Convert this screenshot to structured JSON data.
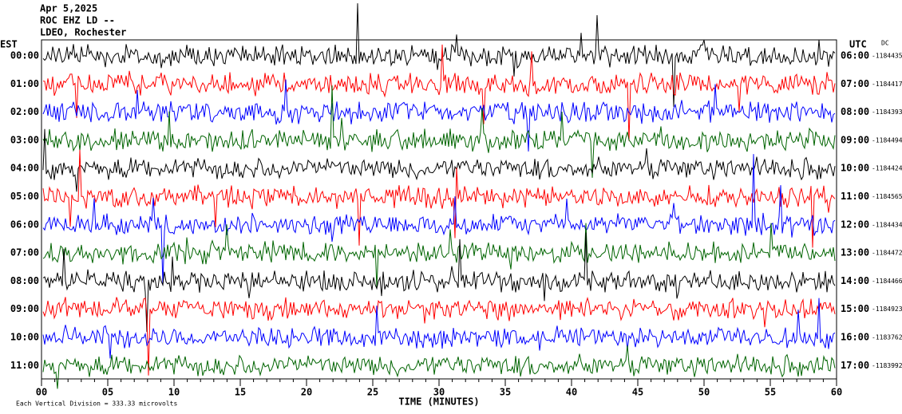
{
  "chart_data": {
    "type": "seismogram",
    "header": [
      "Apr 5,2025",
      "ROC EHZ LD --",
      "LDEO, Rochester"
    ],
    "left_title": "EST",
    "right_title": "UTC",
    "dc_title": "DC",
    "left_labels": [
      "00:00",
      "01:00",
      "02:00",
      "03:00",
      "04:00",
      "05:00",
      "06:00",
      "07:00",
      "08:00",
      "09:00",
      "10:00",
      "11:00"
    ],
    "right_labels": [
      "06:00",
      "07:00",
      "08:00",
      "09:00",
      "10:00",
      "11:00",
      "12:00",
      "13:00",
      "14:00",
      "15:00",
      "16:00",
      "17:00"
    ],
    "dc_offsets": [
      -1184435,
      -1184417,
      -1184393,
      -1184494,
      -1184424,
      -1184565,
      -1184434,
      -1184472,
      -1184466,
      -1184923,
      -1183762,
      -1183992
    ],
    "colors": [
      "#000000",
      "#ff0000",
      "#0000ff",
      "#006400"
    ],
    "xlim": [
      0,
      60
    ],
    "xticks": [
      {
        "value": 0,
        "label": "00"
      },
      {
        "value": 5,
        "label": "05"
      },
      10,
      15,
      20,
      25,
      30,
      35,
      40,
      45,
      50,
      55,
      60
    ],
    "xlabel": "TIME (MINUTES)",
    "footer": "Each Vertical Division = 333.33 microvolts"
  }
}
